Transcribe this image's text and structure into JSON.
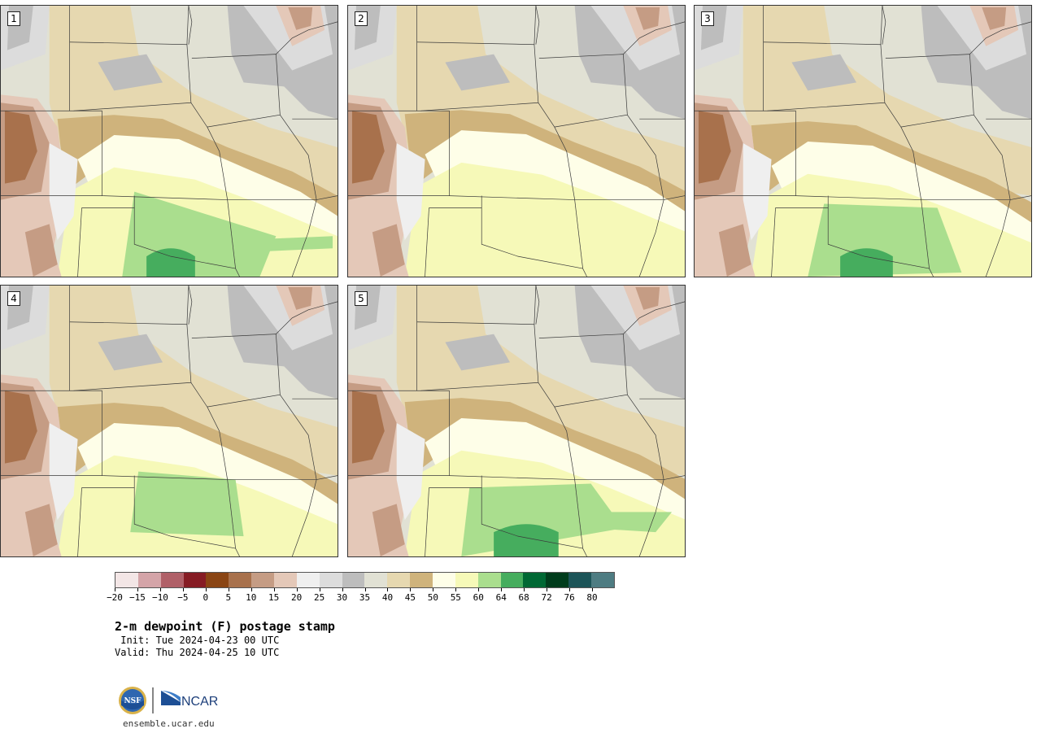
{
  "panels": [
    {
      "number": "1"
    },
    {
      "number": "2"
    },
    {
      "number": "3"
    },
    {
      "number": "4"
    },
    {
      "number": "5"
    }
  ],
  "colorbar": {
    "colors": [
      "#f3e6e6",
      "#d4a4a8",
      "#b06068",
      "#861c24",
      "#8a4514",
      "#a8714c",
      "#c59c84",
      "#e4c8b8",
      "#efefef",
      "#dcdcdc",
      "#bdbdbd",
      "#e1e1d4",
      "#e6d8b0",
      "#cfb37c",
      "#fefee8",
      "#f6f9b8",
      "#aade8e",
      "#46ad5e",
      "#006834",
      "#003c1c",
      "#1c5458",
      "#4e7c82"
    ],
    "tick_labels": [
      "−20",
      "−15",
      "−10",
      "−5",
      "0",
      "5",
      "10",
      "15",
      "20",
      "25",
      "30",
      "35",
      "40",
      "45",
      "50",
      "55",
      "60",
      "64",
      "68",
      "72",
      "76",
      "80"
    ]
  },
  "title": "2-m dewpoint (F) postage stamp",
  "init": " Init: Tue 2024-04-23 00 UTC",
  "valid": "Valid: Thu 2024-04-25 10 UTC",
  "logos": {
    "nsf": "NSF",
    "ncar": "NCAR"
  },
  "url": "ensemble.ucar.edu"
}
